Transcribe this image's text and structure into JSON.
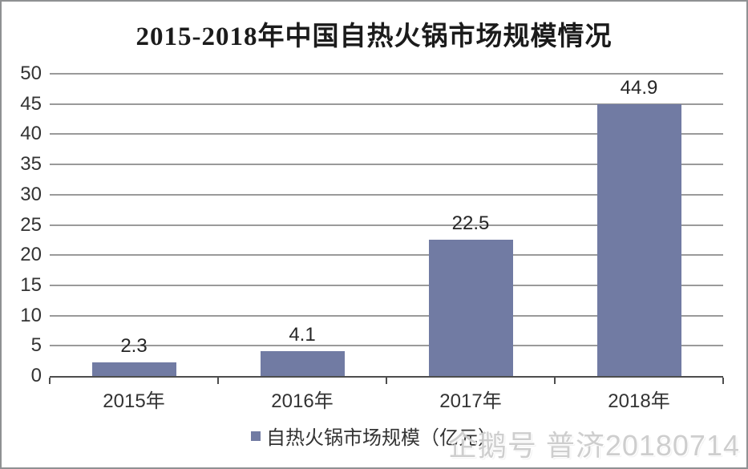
{
  "watermark": "企鹅号 普济20180714",
  "colors": {
    "bar": "#717BA3",
    "gridline": "#9a9a9a",
    "axis": "#4d4d4d",
    "text": "#333333",
    "watermark": "#cccccc"
  },
  "chart_data": {
    "type": "bar",
    "title": "2015-2018年中国自热火锅市场规模情况",
    "categories": [
      "2015年",
      "2016年",
      "2017年",
      "2018年"
    ],
    "values": [
      2.3,
      4.1,
      22.5,
      44.9
    ],
    "value_labels": [
      "2.3",
      "4.1",
      "22.5",
      "44.9"
    ],
    "legend": "自热火锅市场规模（亿元）",
    "legend_position": "bottom-center",
    "xlabel": "",
    "ylabel": "",
    "ylim": [
      0,
      50
    ],
    "yticks": [
      0,
      5,
      10,
      15,
      20,
      25,
      30,
      35,
      40,
      45,
      50
    ],
    "grid": true,
    "unit": "亿元"
  }
}
